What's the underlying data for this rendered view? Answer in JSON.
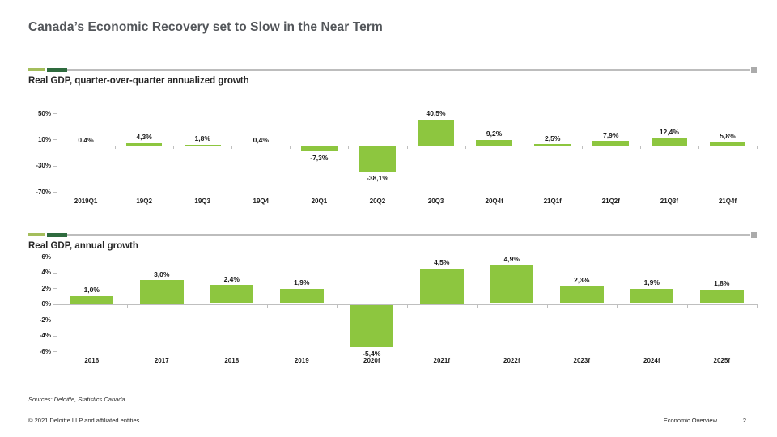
{
  "slide": {
    "title": "Canada’s Economic Recovery set to Slow in the Near Term",
    "footer": {
      "sources": "Sources: Deloitte, Statistics Canada",
      "copyright": "© 2021 Deloitte LLP and affiliated entities",
      "section": "Economic Overview",
      "page_number": "2"
    }
  },
  "colors": {
    "bar_green": "#8DC63F",
    "accent_light_green": "#A4BE5C",
    "accent_dark_green": "#2E6B3E",
    "divider_gray": "#BDBDBD",
    "axis_gray": "#BFBFBF",
    "title_gray": "#53565A",
    "text_dark": "#262626"
  },
  "chart_data": [
    {
      "type": "bar",
      "title": "Real GDP, quarter-over-quarter annualized growth",
      "categories": [
        "2019Q1",
        "19Q2",
        "19Q3",
        "19Q4",
        "20Q1",
        "20Q2",
        "20Q3",
        "20Q4f",
        "21Q1f",
        "21Q2f",
        "21Q3f",
        "21Q4f"
      ],
      "values": [
        0.4,
        4.3,
        1.8,
        0.4,
        -7.3,
        -38.1,
        40.5,
        9.2,
        2.5,
        7.9,
        12.4,
        5.8
      ],
      "labels": [
        "0,4%",
        "4,3%",
        "1,8%",
        "0,4%",
        "-7,3%",
        "-38,1%",
        "40,5%",
        "9,2%",
        "2,5%",
        "7,9%",
        "12,4%",
        "5,8%"
      ],
      "ylim": [
        -70,
        50
      ],
      "yticks": [
        50,
        10,
        -30,
        -70
      ],
      "ytick_labels": [
        "50%",
        "10%",
        "-30%",
        "-70%"
      ],
      "bar_color": "#8DC63F",
      "grid": false,
      "legend": "none"
    },
    {
      "type": "bar",
      "title": "Real GDP, annual growth",
      "categories": [
        "2016",
        "2017",
        "2018",
        "2019",
        "2020f",
        "2021f",
        "2022f",
        "2023f",
        "2024f",
        "2025f"
      ],
      "values": [
        1.0,
        3.0,
        2.4,
        1.9,
        -5.4,
        4.5,
        4.9,
        2.3,
        1.9,
        1.8
      ],
      "labels": [
        "1,0%",
        "3,0%",
        "2,4%",
        "1,9%",
        "-5,4%",
        "4,5%",
        "4,9%",
        "2,3%",
        "1,9%",
        "1,8%"
      ],
      "ylim": [
        -6,
        6
      ],
      "yticks": [
        6,
        4,
        2,
        0,
        -2,
        -4,
        -6
      ],
      "ytick_labels": [
        "6%",
        "4%",
        "2%",
        "0%",
        "-2%",
        "-4%",
        "-6%"
      ],
      "bar_color": "#8DC63F",
      "grid": false,
      "legend": "none"
    }
  ]
}
